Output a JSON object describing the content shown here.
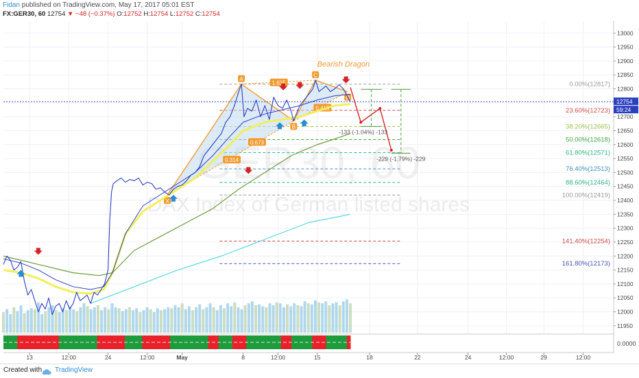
{
  "header": {
    "author": "Fidan",
    "published": "published on TradingView.com, May 17, 2017 05:01 EST",
    "symbol": "FX:GER30, 60",
    "price": "12754",
    "change": "▼ −48 (−0.37%)",
    "ohlc": [
      {
        "label": "O:",
        "value": "12752"
      },
      {
        "label": "H:",
        "value": "12754"
      },
      {
        "label": "L:",
        "value": "12752"
      },
      {
        "label": "C:",
        "value": "12754"
      }
    ]
  },
  "footer": {
    "created_with": "Created with",
    "brand": "TradingView"
  },
  "colors": {
    "price_line": "#2c3fbf",
    "ema_yellow": "#f1ef5a",
    "ema_green": "#6b9b3a",
    "ema_cyan": "#56d6e6",
    "pattern": "#f29a2e",
    "arrow_red": "#d52323",
    "arrow_blue": "#2a8bd4"
  },
  "chart_data": {
    "type": "line",
    "title": "",
    "watermark": {
      "symbol": "GER30, 60",
      "description": "DAX Index of German listed shares"
    },
    "ylim": [
      11920,
      13040
    ],
    "yticks": [
      11950,
      12000,
      12050,
      12100,
      12150,
      12200,
      12250,
      12300,
      12350,
      12400,
      12450,
      12500,
      12550,
      12600,
      12650,
      12700,
      12750,
      12800,
      12850,
      12900,
      12950,
      13000
    ],
    "last_price": "12754",
    "countdown": "59:24",
    "xticks": [
      {
        "label": "13",
        "i": 30
      },
      {
        "label": "12:00",
        "i": 75
      },
      {
        "label": "24",
        "i": 120
      },
      {
        "label": "12:00",
        "i": 165
      },
      {
        "label": "May",
        "i": 205
      },
      {
        "label": "8",
        "i": 275
      },
      {
        "label": "12:00",
        "i": 315
      },
      {
        "label": "15",
        "i": 360
      },
      {
        "label": "18",
        "i": 420
      },
      {
        "label": "22",
        "i": 475
      },
      {
        "label": "24",
        "i": 533
      },
      {
        "label": "12:00",
        "i": 577
      },
      {
        "label": "29",
        "i": 620
      },
      {
        "label": "12:00",
        "i": 665
      }
    ],
    "fib_levels": [
      {
        "label": "0.00%(12817)",
        "value": 12817,
        "color": "#999999"
      },
      {
        "label": "23.60%(12723)",
        "value": 12723,
        "color": "#d14a4a"
      },
      {
        "label": "38.20%(12665)",
        "value": 12665,
        "color": "#9cc04a"
      },
      {
        "label": "50.00%(12618)",
        "value": 12618,
        "color": "#3fa83f"
      },
      {
        "label": "61.80%(12571)",
        "value": 12571,
        "color": "#2ab582"
      },
      {
        "label": "76.40%(12513)",
        "value": 12513,
        "color": "#3f8fbf"
      },
      {
        "label": "88.60%(12464)",
        "value": 12464,
        "color": "#2ab582"
      },
      {
        "label": "100.00%(12419)",
        "value": 12419,
        "color": "#999999"
      },
      {
        "label": "141.40%(12254)",
        "value": 12254,
        "color": "#d14a4a"
      },
      {
        "label": "161.80%(12173)",
        "value": 12173,
        "color": "#3f55bf"
      }
    ],
    "pattern_name": "Bearish Dragon",
    "pattern_points": [
      {
        "label": "X",
        "i": 188,
        "value": 12419
      },
      {
        "label": "A",
        "i": 273,
        "value": 12817
      },
      {
        "label": "B",
        "i": 333,
        "value": 12685
      },
      {
        "label": "C",
        "i": 358,
        "value": 12831
      },
      {
        "label": "D",
        "i": 395,
        "value": 12790
      }
    ],
    "pattern_ratios": [
      {
        "label": "0.314",
        "i": 262,
        "value": 12545
      },
      {
        "label": "0.673",
        "i": 291,
        "value": 12608
      },
      {
        "label": "1.635",
        "i": 316,
        "value": 12822
      },
      {
        "label": "0.418",
        "i": 366,
        "value": 12731
      }
    ],
    "projections": [
      {
        "label": "-133 (-1.04%) -133",
        "from": 12798,
        "to": 12665,
        "i_start": 410,
        "i_end": 434
      },
      {
        "label": "-229 (-1.79%) -229",
        "from": 12798,
        "to": 12569,
        "i_start": 445,
        "i_end": 467
      }
    ],
    "series": [
      {
        "name": "",
        "x": [
          0,
          4,
          8,
          12,
          16,
          20,
          24,
          28,
          32,
          36,
          40,
          44,
          48,
          52,
          56,
          60,
          64,
          68,
          72,
          76,
          80,
          84,
          88,
          92,
          96,
          100,
          104,
          108,
          112,
          116,
          120,
          122,
          124,
          126,
          130,
          135,
          140,
          145,
          150,
          155,
          160,
          165,
          170,
          175,
          180,
          185,
          190,
          195,
          200,
          205,
          210,
          215,
          220,
          225,
          230,
          235,
          240,
          245,
          250,
          255,
          260,
          265,
          270,
          273,
          276,
          280,
          285,
          290,
          295,
          300,
          305,
          310,
          315,
          320,
          325,
          330,
          333,
          336,
          340,
          345,
          350,
          355,
          358,
          362,
          366,
          370,
          375,
          380,
          385,
          390,
          395,
          398
        ],
        "values": [
          12170,
          12200,
          12185,
          12150,
          12160,
          12180,
          12110,
          12060,
          12080,
          12040,
          12000,
          12030,
          12010,
          12050,
          11990,
          12020,
          12030,
          12000,
          12040,
          12010,
          12030,
          12070,
          12040,
          12050,
          12060,
          12030,
          12070,
          12060,
          12080,
          12100,
          12150,
          12330,
          12430,
          12460,
          12470,
          12480,
          12465,
          12475,
          12470,
          12480,
          12455,
          12465,
          12460,
          12440,
          12445,
          12430,
          12419,
          12440,
          12450,
          12455,
          12470,
          12490,
          12500,
          12520,
          12560,
          12580,
          12600,
          12620,
          12640,
          12680,
          12700,
          12740,
          12790,
          12817,
          12700,
          12730,
          12720,
          12760,
          12700,
          12740,
          12690,
          12770,
          12740,
          12730,
          12760,
          12720,
          12685,
          12710,
          12740,
          12760,
          12780,
          12800,
          12831,
          12790,
          12800,
          12810,
          12790,
          12800,
          12815,
          12800,
          12770,
          12754
        ]
      },
      {
        "name": "",
        "x": [
          0,
          20,
          40,
          60,
          80,
          100,
          115,
          125,
          140,
          160,
          180,
          200,
          220,
          240,
          260,
          275,
          300,
          320,
          340,
          360,
          380,
          398
        ],
        "values": [
          12150,
          12140,
          12120,
          12090,
          12070,
          12065,
          12080,
          12140,
          12280,
          12360,
          12400,
          12440,
          12480,
          12540,
          12600,
          12650,
          12680,
          12690,
          12700,
          12720,
          12740,
          12745
        ]
      },
      {
        "name": "",
        "x": [
          0,
          20,
          40,
          60,
          80,
          100,
          115,
          125,
          140,
          160,
          180,
          200,
          220,
          240,
          260,
          275,
          300,
          320,
          340,
          360,
          380,
          398
        ],
        "values": [
          12190,
          12175,
          12150,
          12115,
          12090,
          12080,
          12090,
          12140,
          12280,
          12380,
          12420,
          12460,
          12500,
          12560,
          12630,
          12680,
          12710,
          12725,
          12740,
          12760,
          12775,
          12780
        ]
      },
      {
        "name": "",
        "x": [
          0,
          40,
          80,
          110,
          125,
          150,
          180,
          210,
          240,
          270,
          300,
          330,
          360,
          380,
          398
        ],
        "values": [
          12200,
          12170,
          12140,
          12130,
          12140,
          12220,
          12270,
          12320,
          12370,
          12440,
          12500,
          12560,
          12600,
          12620,
          12640
        ]
      },
      {
        "name": "",
        "x": [
          100,
          150,
          200,
          250,
          300,
          350,
          398
        ],
        "values": [
          12030,
          12090,
          12150,
          12200,
          12260,
          12320,
          12350
        ]
      }
    ],
    "volume": [
      210,
      240,
      190,
      260,
      220,
      280,
      200,
      230,
      250,
      240,
      310,
      190,
      220,
      260,
      280,
      230,
      210,
      250,
      230,
      270,
      240,
      220,
      260,
      300,
      270,
      240,
      260,
      280,
      230,
      260,
      240,
      300,
      260,
      250,
      220,
      240,
      260,
      230,
      250,
      210,
      230,
      260,
      240,
      210,
      250,
      230,
      240,
      260,
      250,
      280,
      260,
      300,
      240,
      270,
      230,
      260,
      290,
      240,
      260,
      300,
      260,
      230,
      280,
      250,
      300,
      270,
      310,
      260,
      240,
      280,
      300,
      320,
      280,
      290,
      270,
      260,
      300,
      280,
      310,
      300,
      260,
      290,
      270,
      300,
      280,
      270,
      320,
      300,
      290,
      330,
      310,
      300,
      320,
      280,
      300,
      310,
      280,
      320,
      340,
      300
    ],
    "indicator": {
      "value_label": "0.0000",
      "states": [
        1,
        1,
        1,
        1,
        0,
        0,
        0,
        0,
        0,
        0,
        0,
        0,
        0,
        0,
        0,
        0,
        1,
        1,
        1,
        1,
        1,
        1,
        1,
        1,
        1,
        1,
        1,
        0,
        0,
        0,
        0,
        0,
        0,
        0,
        0,
        1,
        1,
        1,
        1,
        1,
        0,
        0,
        0,
        0,
        0,
        0,
        0,
        0,
        1,
        1,
        1,
        1,
        1,
        1,
        1,
        1,
        1,
        1,
        1,
        0,
        0,
        0,
        1,
        1,
        1,
        1,
        0,
        0,
        0,
        0,
        1,
        1,
        1,
        1,
        1,
        1,
        1,
        1,
        1,
        1,
        0,
        0,
        0,
        1,
        1,
        1,
        1,
        1,
        1,
        0,
        0,
        0,
        0,
        1,
        1,
        1,
        1,
        1,
        1,
        0
      ]
    }
  }
}
